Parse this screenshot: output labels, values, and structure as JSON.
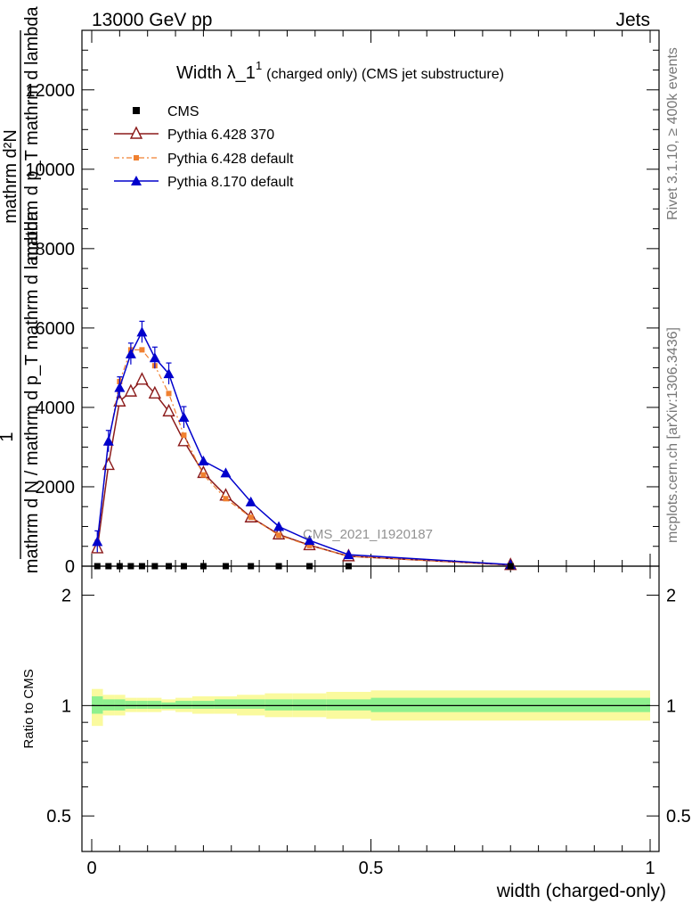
{
  "header": {
    "left": "13000 GeV pp",
    "right": "Jets"
  },
  "side_labels": {
    "rivet": "Rivet 3.1.10, ≥ 400k events",
    "mcplots": "mcplots.cern.ch [arXiv:1306.3436]"
  },
  "chart_data": {
    "type": "line",
    "title": {
      "main": "Width λ_1",
      "superscript": "1",
      "suffix": "(charged only) (CMS jet substructure)"
    },
    "analysis_label": "CMS_2021_I1920187",
    "ylabel_main": {
      "numerator": "mathrm d²N",
      "numerator_line2": "mathrm d p_T mathrm d lambda",
      "one": "1",
      "denominator": "mathrm d N / mathrm d p_T mathrm d lambda"
    },
    "ylabel_ratio": "Ratio to CMS",
    "xlabel": "width (charged-only)",
    "xlim": [
      0,
      1
    ],
    "ylim_main": [
      0,
      13500
    ],
    "ylim_ratio": [
      0.4,
      2.4
    ],
    "x_ticks": [
      {
        "v": 0,
        "label": "0"
      },
      {
        "v": 0.5,
        "label": "0.5"
      },
      {
        "v": 1,
        "label": "1"
      }
    ],
    "y_ticks_main": [
      {
        "v": 0,
        "label": "0"
      },
      {
        "v": 2000,
        "label": "2000"
      },
      {
        "v": 4000,
        "label": "4000"
      },
      {
        "v": 6000,
        "label": "6000"
      },
      {
        "v": 8000,
        "label": "8000"
      },
      {
        "v": 10000,
        "label": "10000"
      },
      {
        "v": 12000,
        "label": "12000"
      }
    ],
    "y_ticks_ratio": [
      {
        "v": 0.5,
        "label": "0.5"
      },
      {
        "v": 1,
        "label": "1"
      },
      {
        "v": 2,
        "label": "2"
      }
    ],
    "legend_position": "top-left",
    "series": [
      {
        "name": "CMS",
        "color": "#000000",
        "marker": "square",
        "x": [
          0.01,
          0.03,
          0.05,
          0.07,
          0.09,
          0.113,
          0.138,
          0.165,
          0.2,
          0.24,
          0.285,
          0.335,
          0.39,
          0.46,
          0.75
        ],
        "y": [
          0,
          0,
          0,
          0,
          0,
          0,
          0,
          0,
          0,
          0,
          0,
          0,
          0,
          0,
          0
        ]
      },
      {
        "name": "Pythia 6.428 370",
        "color": "#8b1a1a",
        "marker": "open-triangle",
        "line": "solid",
        "x": [
          0.01,
          0.03,
          0.05,
          0.07,
          0.09,
          0.113,
          0.138,
          0.165,
          0.2,
          0.24,
          0.285,
          0.335,
          0.39,
          0.46,
          0.75
        ],
        "y": [
          450,
          2550,
          4150,
          4400,
          4700,
          4350,
          3900,
          3150,
          2350,
          1780,
          1230,
          800,
          530,
          250,
          30
        ]
      },
      {
        "name": "Pythia 6.428 default",
        "color": "#f08030",
        "marker": "filled-square",
        "line": "dashdot",
        "x": [
          0.01,
          0.03,
          0.05,
          0.07,
          0.09,
          0.113,
          0.138,
          0.165,
          0.2,
          0.24,
          0.285,
          0.335,
          0.39,
          0.46,
          0.75
        ],
        "y": [
          600,
          3100,
          4650,
          5450,
          5450,
          5050,
          4350,
          3300,
          2300,
          1700,
          1230,
          780,
          520,
          250,
          30
        ]
      },
      {
        "name": "Pythia 8.170 default",
        "color": "#0000cc",
        "marker": "filled-triangle",
        "line": "solid",
        "x": [
          0.01,
          0.03,
          0.05,
          0.07,
          0.09,
          0.113,
          0.138,
          0.165,
          0.2,
          0.24,
          0.285,
          0.335,
          0.39,
          0.46,
          0.75
        ],
        "y": [
          620,
          3150,
          4500,
          5350,
          5900,
          5250,
          4850,
          3750,
          2650,
          2350,
          1620,
          1000,
          650,
          290,
          40
        ]
      }
    ],
    "ratio_bands": {
      "edges": [
        0,
        0.02,
        0.04,
        0.06,
        0.08,
        0.1,
        0.125,
        0.15,
        0.18,
        0.22,
        0.26,
        0.31,
        0.36,
        0.42,
        0.5,
        1.0
      ],
      "inner": [
        [
          0.95,
          1.06
        ],
        [
          0.97,
          1.04
        ],
        [
          0.97,
          1.04
        ],
        [
          0.98,
          1.03
        ],
        [
          0.98,
          1.03
        ],
        [
          0.98,
          1.03
        ],
        [
          0.98,
          1.02
        ],
        [
          0.98,
          1.03
        ],
        [
          0.98,
          1.03
        ],
        [
          0.98,
          1.04
        ],
        [
          0.98,
          1.04
        ],
        [
          0.97,
          1.04
        ],
        [
          0.97,
          1.04
        ],
        [
          0.97,
          1.04
        ],
        [
          0.96,
          1.05
        ]
      ],
      "outer": [
        [
          0.88,
          1.11
        ],
        [
          0.94,
          1.07
        ],
        [
          0.94,
          1.07
        ],
        [
          0.96,
          1.05
        ],
        [
          0.96,
          1.05
        ],
        [
          0.96,
          1.05
        ],
        [
          0.97,
          1.04
        ],
        [
          0.96,
          1.05
        ],
        [
          0.95,
          1.06
        ],
        [
          0.95,
          1.06
        ],
        [
          0.94,
          1.07
        ],
        [
          0.93,
          1.08
        ],
        [
          0.93,
          1.08
        ],
        [
          0.92,
          1.09
        ],
        [
          0.91,
          1.1
        ]
      ],
      "inner_color": "#8ef08e",
      "outer_color": "#fafa9e"
    }
  }
}
